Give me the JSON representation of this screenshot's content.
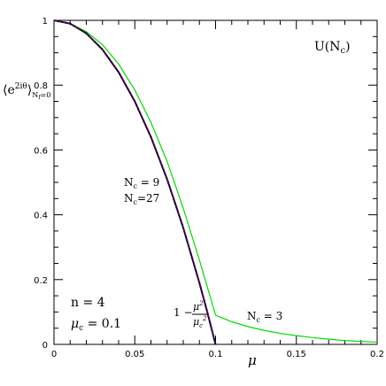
{
  "chart_data": {
    "type": "line",
    "title": "U(N_c)",
    "xlabel": "μ",
    "ylabel": "⟨e^{2iθ}⟩_{N_f=0}",
    "xlim": [
      0,
      0.2
    ],
    "ylim": [
      0,
      1
    ],
    "x_ticks": [
      "0",
      "0.05",
      "0.1",
      "0.15",
      "0.2"
    ],
    "y_ticks": [
      "0",
      "0.2",
      "0.4",
      "0.6",
      "0.8",
      "1"
    ],
    "grid": false,
    "series": [
      {
        "name": "1 − μ²/μc²",
        "color": "#000000",
        "x": [
          0,
          0.01,
          0.02,
          0.03,
          0.04,
          0.05,
          0.06,
          0.07,
          0.08,
          0.09,
          0.095,
          0.1
        ],
        "y": [
          1.0,
          0.99,
          0.96,
          0.91,
          0.84,
          0.75,
          0.64,
          0.51,
          0.36,
          0.19,
          0.0975,
          0.0
        ]
      },
      {
        "name": "Nc = 9",
        "color": "#e00000",
        "x": [
          0,
          0.01,
          0.02,
          0.03,
          0.04,
          0.05,
          0.06,
          0.07,
          0.08,
          0.09,
          0.095,
          0.1
        ],
        "y": [
          1.0,
          0.99,
          0.96,
          0.912,
          0.843,
          0.753,
          0.643,
          0.513,
          0.363,
          0.193,
          0.1,
          0.003
        ]
      },
      {
        "name": "Nc=27",
        "color": "#0000d0",
        "x": [
          0,
          0.01,
          0.02,
          0.03,
          0.04,
          0.05,
          0.06,
          0.07,
          0.08,
          0.09,
          0.095,
          0.1
        ],
        "y": [
          1.0,
          0.99,
          0.96,
          0.911,
          0.841,
          0.751,
          0.641,
          0.511,
          0.361,
          0.191,
          0.098,
          0.001
        ]
      },
      {
        "name": "Nc = 3",
        "color": "#00dd00",
        "x": [
          0,
          0.01,
          0.02,
          0.03,
          0.04,
          0.05,
          0.06,
          0.07,
          0.08,
          0.09,
          0.1,
          0.11,
          0.12,
          0.13,
          0.14,
          0.15,
          0.16,
          0.17,
          0.18,
          0.19,
          0.2
        ],
        "y": [
          1.0,
          0.99,
          0.965,
          0.925,
          0.865,
          0.785,
          0.685,
          0.565,
          0.42,
          0.26,
          0.09,
          0.07,
          0.055,
          0.043,
          0.034,
          0.027,
          0.021,
          0.016,
          0.012,
          0.009,
          0.007
        ]
      }
    ],
    "annotations": {
      "title": "U(N_c)",
      "n_label": "n  =  4",
      "mu_c_label": "μc  =  0.1",
      "nc9": "Nc = 9",
      "nc27": "Nc=27",
      "nc3": "Nc = 3",
      "formula": "1 − μ²/μc²"
    }
  }
}
